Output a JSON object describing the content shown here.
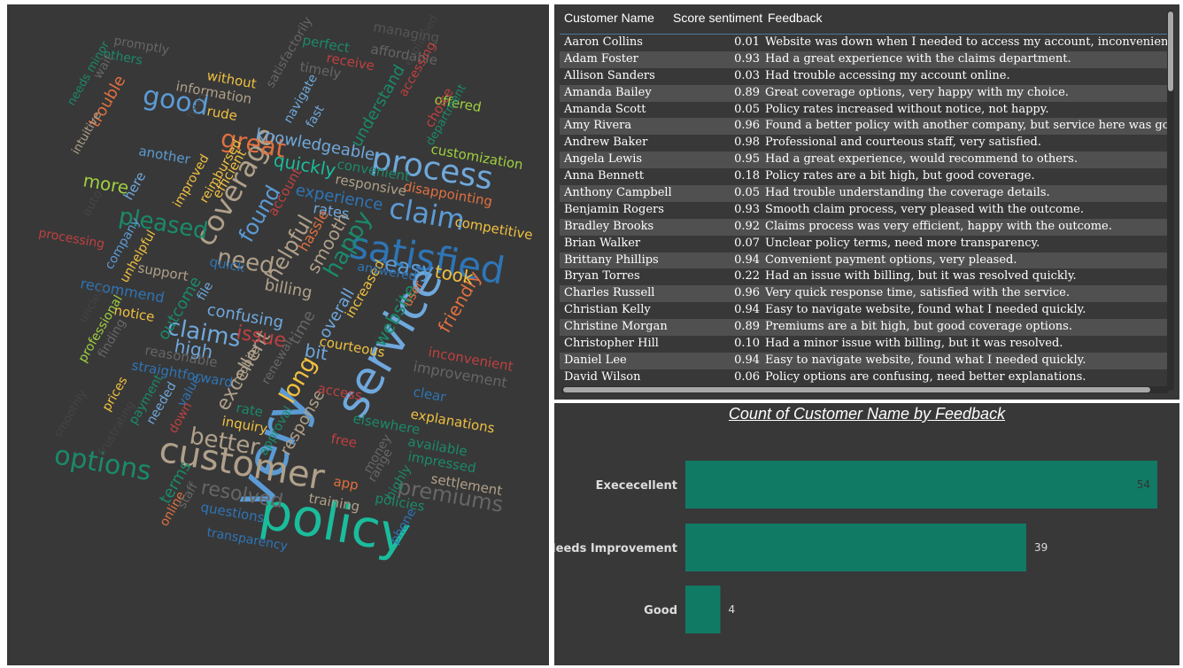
{
  "wordcloud": {
    "words": [
      {
        "text": "policy",
        "color": "#1abc9c",
        "size": 58,
        "rot": 10
      },
      {
        "text": "very",
        "color": "#5b9bd5",
        "size": 64,
        "rot": -70
      },
      {
        "text": "service",
        "color": "#6fa8dc",
        "size": 52,
        "rot": -60
      },
      {
        "text": "customer",
        "color": "#b0a08a",
        "size": 40,
        "rot": 10
      },
      {
        "text": "satisfied",
        "color": "#2e75b6",
        "size": 42,
        "rot": 10
      },
      {
        "text": "process",
        "color": "#6fa8dc",
        "size": 36,
        "rot": 10
      },
      {
        "text": "coverage",
        "color": "#b0a08a",
        "size": 32,
        "rot": -60
      },
      {
        "text": "claim",
        "color": "#5b9bd5",
        "size": 32,
        "rot": 10
      },
      {
        "text": "good",
        "color": "#5b9bd5",
        "size": 30,
        "rot": 10
      },
      {
        "text": "great",
        "color": "#e07040",
        "size": 28,
        "rot": 10
      },
      {
        "text": "options",
        "color": "#1a8a6a",
        "size": 30,
        "rot": 10
      },
      {
        "text": "better",
        "color": "#b0a08a",
        "size": 26,
        "rot": 10
      },
      {
        "text": "premiums",
        "color": "#666666",
        "size": 24,
        "rot": 10
      },
      {
        "text": "pleased",
        "color": "#1a8a6a",
        "size": 26,
        "rot": 10
      },
      {
        "text": "need",
        "color": "#b0a08a",
        "size": 26,
        "rot": 10
      },
      {
        "text": "happy",
        "color": "#1a8a6a",
        "size": 26,
        "rot": -60
      },
      {
        "text": "claims",
        "color": "#6fa8dc",
        "size": 26,
        "rot": 10
      },
      {
        "text": "long",
        "color": "#f0c040",
        "size": 26,
        "rot": -60
      },
      {
        "text": "easy",
        "color": "#5b9bd5",
        "size": 24,
        "rot": 10
      },
      {
        "text": "helpful",
        "color": "#b0a08a",
        "size": 24,
        "rot": -60
      },
      {
        "text": "found",
        "color": "#5b9bd5",
        "size": 24,
        "rot": -60
      },
      {
        "text": "resolved",
        "color": "#666666",
        "size": 22,
        "rot": 10
      },
      {
        "text": "excellent",
        "color": "#b0a08a",
        "size": 22,
        "rot": -60
      },
      {
        "text": "issue",
        "color": "#c04040",
        "size": 22,
        "rot": 10
      },
      {
        "text": "friendly",
        "color": "#e07040",
        "size": 20,
        "rot": -60
      },
      {
        "text": "website",
        "color": "#1a8a6a",
        "size": 20,
        "rot": -60
      },
      {
        "text": "quickly",
        "color": "#1abc9c",
        "size": 20,
        "rot": 10
      },
      {
        "text": "high",
        "color": "#6fa8dc",
        "size": 20,
        "rot": 10
      },
      {
        "text": "bit",
        "color": "#6fa8dc",
        "size": 20,
        "rot": 10
      },
      {
        "text": "more",
        "color": "#a0d040",
        "size": 20,
        "rot": 10
      },
      {
        "text": "took",
        "color": "#f0c040",
        "size": 20,
        "rot": 10
      },
      {
        "text": "smooth",
        "color": "#b0a08a",
        "size": 20,
        "rot": -60
      },
      {
        "text": "overall",
        "color": "#6fa8dc",
        "size": 18,
        "rot": -60
      },
      {
        "text": "confusing",
        "color": "#6fa8dc",
        "size": 18,
        "rot": 10
      },
      {
        "text": "knowledgeable",
        "color": "#6fa8dc",
        "size": 18,
        "rot": 10
      },
      {
        "text": "understand",
        "color": "#1a8a6a",
        "size": 18,
        "rot": -60
      },
      {
        "text": "outcome",
        "color": "#1a8a6a",
        "size": 18,
        "rot": -60
      },
      {
        "text": "terms",
        "color": "#1a8a6a",
        "size": 18,
        "rot": -60
      },
      {
        "text": "time",
        "color": "#666666",
        "size": 18,
        "rot": -60
      },
      {
        "text": "response",
        "color": "#b0a08a",
        "size": 18,
        "rot": -60
      },
      {
        "text": "billing",
        "color": "#b0a08a",
        "size": 18,
        "rot": 10
      },
      {
        "text": "trouble",
        "color": "#e07040",
        "size": 18,
        "rot": -60
      },
      {
        "text": "customization",
        "color": "#a0d040",
        "size": 15,
        "rot": 10
      },
      {
        "text": "competitive",
        "color": "#f0c040",
        "size": 15,
        "rot": 10
      },
      {
        "text": "disappointing",
        "color": "#e07040",
        "size": 15,
        "rot": 10
      },
      {
        "text": "explanations",
        "color": "#f0c040",
        "size": 15,
        "rot": 10
      },
      {
        "text": "settlement",
        "color": "#b0a08a",
        "size": 15,
        "rot": 10
      },
      {
        "text": "inconvenient",
        "color": "#c04040",
        "size": 15,
        "rot": 10
      },
      {
        "text": "improvement",
        "color": "#666666",
        "size": 16,
        "rot": 10
      },
      {
        "text": "elsewhere",
        "color": "#1a8a6a",
        "size": 15,
        "rot": 10
      },
      {
        "text": "impressed",
        "color": "#1a8a6a",
        "size": 15,
        "rot": 10
      },
      {
        "text": "available",
        "color": "#1a8a6a",
        "size": 15,
        "rot": 10
      },
      {
        "text": "policies",
        "color": "#1a8a6a",
        "size": 15,
        "rot": 10
      },
      {
        "text": "training",
        "color": "#b0a08a",
        "size": 15,
        "rot": 10
      },
      {
        "text": "app",
        "color": "#e07040",
        "size": 15,
        "rot": 10
      },
      {
        "text": "questions",
        "color": "#2e75b6",
        "size": 15,
        "rot": 10
      },
      {
        "text": "transparency",
        "color": "#2e75b6",
        "size": 14,
        "rot": 10
      },
      {
        "text": "inquiry",
        "color": "#f0c040",
        "size": 15,
        "rot": 10
      },
      {
        "text": "rate",
        "color": "#1a8a6a",
        "size": 15,
        "rot": 10
      },
      {
        "text": "free",
        "color": "#c04040",
        "size": 15,
        "rot": 10
      },
      {
        "text": "access",
        "color": "#c04040",
        "size": 15,
        "rot": 10
      },
      {
        "text": "clear",
        "color": "#2e75b6",
        "size": 15,
        "rot": 10
      },
      {
        "text": "courteous",
        "color": "#f0c040",
        "size": 15,
        "rot": 10
      },
      {
        "text": "increased",
        "color": "#f0c040",
        "size": 15,
        "rot": -60
      },
      {
        "text": "user",
        "color": "#e07040",
        "size": 14,
        "rot": -60
      },
      {
        "text": "answered",
        "color": "#2e75b6",
        "size": 14,
        "rot": 10
      },
      {
        "text": "rates",
        "color": "#6fa8dc",
        "size": 16,
        "rot": 10
      },
      {
        "text": "hassle",
        "color": "#e07040",
        "size": 16,
        "rot": -60
      },
      {
        "text": "responsive",
        "color": "#b0a08a",
        "size": 15,
        "rot": 10
      },
      {
        "text": "convenient",
        "color": "#1a8a6a",
        "size": 15,
        "rot": 10
      },
      {
        "text": "experience",
        "color": "#2e75b6",
        "size": 18,
        "rot": 10
      },
      {
        "text": "account",
        "color": "#c04040",
        "size": 15,
        "rot": -60
      },
      {
        "text": "efficient",
        "color": "#f0c040",
        "size": 15,
        "rot": -60
      },
      {
        "text": "reimbursed",
        "color": "#f0c040",
        "size": 14,
        "rot": -60
      },
      {
        "text": "improved",
        "color": "#f0c040",
        "size": 14,
        "rot": -60
      },
      {
        "text": "another",
        "color": "#5b9bd5",
        "size": 15,
        "rot": 10
      },
      {
        "text": "here",
        "color": "#6fa8dc",
        "size": 15,
        "rot": -60
      },
      {
        "text": "company",
        "color": "#5b9bd5",
        "size": 14,
        "rot": -60
      },
      {
        "text": "unhelpful",
        "color": "#f0c040",
        "size": 14,
        "rot": -60
      },
      {
        "text": "support",
        "color": "#b0a08a",
        "size": 15,
        "rot": 10
      },
      {
        "text": "quick",
        "color": "#2e75b6",
        "size": 15,
        "rot": 10
      },
      {
        "text": "recommend",
        "color": "#2e75b6",
        "size": 16,
        "rot": 10
      },
      {
        "text": "processing",
        "color": "#c04040",
        "size": 14,
        "rot": 10
      },
      {
        "text": "notice",
        "color": "#f0c040",
        "size": 15,
        "rot": 10
      },
      {
        "text": "professional",
        "color": "#a0d040",
        "size": 14,
        "rot": -60
      },
      {
        "text": "finding",
        "color": "#666666",
        "size": 14,
        "rot": -60
      },
      {
        "text": "reasonable",
        "color": "#666666",
        "size": 15,
        "rot": 10
      },
      {
        "text": "straightforward",
        "color": "#2e75b6",
        "size": 15,
        "rot": 10
      },
      {
        "text": "file",
        "color": "#6fa8dc",
        "size": 14,
        "rot": -60
      },
      {
        "text": "mobile",
        "color": "#b0a08a",
        "size": 14,
        "rot": -60
      },
      {
        "text": "renewal",
        "color": "#666666",
        "size": 14,
        "rot": -60
      },
      {
        "text": "prices",
        "color": "#f0c040",
        "size": 14,
        "rot": -60
      },
      {
        "text": "payment",
        "color": "#1a8a6a",
        "size": 14,
        "rot": -60
      },
      {
        "text": "needed",
        "color": "#6fa8dc",
        "size": 14,
        "rot": -60
      },
      {
        "text": "value",
        "color": "#2e75b6",
        "size": 14,
        "rot": -60
      },
      {
        "text": "down",
        "color": "#c04040",
        "size": 14,
        "rot": -60
      },
      {
        "text": "approval",
        "color": "#1a8a6a",
        "size": 14,
        "rot": -60
      },
      {
        "text": "money",
        "color": "#666666",
        "size": 14,
        "rot": -60
      },
      {
        "text": "range",
        "color": "#666666",
        "size": 14,
        "rot": -60
      },
      {
        "text": "highly",
        "color": "#1a8a6a",
        "size": 14,
        "rot": -60
      },
      {
        "text": "phone",
        "color": "#2e75b6",
        "size": 14,
        "rot": -60
      },
      {
        "text": "online",
        "color": "#e07040",
        "size": 14,
        "rot": -60
      },
      {
        "text": "staff",
        "color": "#666666",
        "size": 14,
        "rot": -60
      },
      {
        "text": "rude",
        "color": "#f0c040",
        "size": 15,
        "rot": 10
      },
      {
        "text": "without",
        "color": "#f0c040",
        "size": 15,
        "rot": 10
      },
      {
        "text": "information",
        "color": "#b0a08a",
        "size": 15,
        "rot": 10
      },
      {
        "text": "satisfactorily",
        "color": "#666666",
        "size": 14,
        "rot": -60
      },
      {
        "text": "navigate",
        "color": "#6fa8dc",
        "size": 14,
        "rot": -60
      },
      {
        "text": "fast",
        "color": "#6fa8dc",
        "size": 14,
        "rot": -60
      },
      {
        "text": "timely",
        "color": "#666666",
        "size": 15,
        "rot": 10
      },
      {
        "text": "receive",
        "color": "#c04040",
        "size": 15,
        "rot": 10
      },
      {
        "text": "perfect",
        "color": "#1a8a6a",
        "size": 15,
        "rot": 10
      },
      {
        "text": "affordable",
        "color": "#666666",
        "size": 15,
        "rot": 10
      },
      {
        "text": "managing",
        "color": "#555555",
        "size": 15,
        "rot": 10
      },
      {
        "text": "accessing",
        "color": "#c04040",
        "size": 14,
        "rot": -60
      },
      {
        "text": "offered",
        "color": "#a0d040",
        "size": 15,
        "rot": 10
      },
      {
        "text": "choice",
        "color": "#c04040",
        "size": 15,
        "rot": -60
      },
      {
        "text": "department",
        "color": "#1a8a6a",
        "size": 13,
        "rot": -60
      },
      {
        "text": "promptly",
        "color": "#666666",
        "size": 14,
        "rot": 10
      },
      {
        "text": "others",
        "color": "#1a8a6a",
        "size": 14,
        "rot": 10
      },
      {
        "text": "wait",
        "color": "#666666",
        "size": 14,
        "rot": -60
      },
      {
        "text": "needs minor",
        "color": "#1a8a6a",
        "size": 13,
        "rot": -60
      },
      {
        "text": "intuitive",
        "color": "#b0a08a",
        "size": 13,
        "rot": -60
      },
      {
        "text": "auto",
        "color": "#444444",
        "size": 14,
        "rot": -60
      },
      {
        "text": "unclear",
        "color": "#444444",
        "size": 13,
        "rot": -60
      },
      {
        "text": "smoothly",
        "color": "#444444",
        "size": 13,
        "rot": -60
      },
      {
        "text": "fixed",
        "color": "#444444",
        "size": 13,
        "rot": -60
      },
      {
        "text": "frustrating",
        "color": "#444444",
        "size": 13,
        "rot": -60
      },
      {
        "text": "explained",
        "color": "#444444",
        "size": 13,
        "rot": -60
      }
    ]
  },
  "table": {
    "headers": {
      "name": "Customer Name",
      "score": "Score sentiment",
      "feedback": "Feedback"
    },
    "rows": [
      {
        "name": "Aaron Collins",
        "score": "0.01",
        "feedback": "Website was down when I needed to access my account, inconvenient."
      },
      {
        "name": "Adam Foster",
        "score": "0.93",
        "feedback": "Had a great experience with the claims department."
      },
      {
        "name": "Allison Sanders",
        "score": "0.03",
        "feedback": "Had trouble accessing my account online."
      },
      {
        "name": "Amanda Bailey",
        "score": "0.89",
        "feedback": "Great coverage options, very happy with my choice."
      },
      {
        "name": "Amanda Scott",
        "score": "0.05",
        "feedback": "Policy rates increased without notice, not happy."
      },
      {
        "name": "Amy Rivera",
        "score": "0.96",
        "feedback": "Found a better policy with another company, but service here was good."
      },
      {
        "name": "Andrew Baker",
        "score": "0.98",
        "feedback": "Professional and courteous staff, very satisfied."
      },
      {
        "name": "Angela Lewis",
        "score": "0.95",
        "feedback": "Had a great experience, would recommend to others."
      },
      {
        "name": "Anna Bennett",
        "score": "0.18",
        "feedback": "Policy rates are a bit high, but good coverage."
      },
      {
        "name": "Anthony Campbell",
        "score": "0.05",
        "feedback": "Had trouble understanding the coverage details."
      },
      {
        "name": "Benjamin Rogers",
        "score": "0.93",
        "feedback": "Smooth claim process, very pleased with the outcome."
      },
      {
        "name": "Bradley Brooks",
        "score": "0.92",
        "feedback": "Claims process was very efficient, happy with the outcome."
      },
      {
        "name": "Brian Walker",
        "score": "0.07",
        "feedback": "Unclear policy terms, need more transparency."
      },
      {
        "name": "Brittany Phillips",
        "score": "0.94",
        "feedback": "Convenient payment options, very pleased."
      },
      {
        "name": "Bryan Torres",
        "score": "0.22",
        "feedback": "Had an issue with billing, but it was resolved quickly."
      },
      {
        "name": "Charles Russell",
        "score": "0.96",
        "feedback": "Very quick response time, satisfied with the service."
      },
      {
        "name": "Christian Kelly",
        "score": "0.94",
        "feedback": "Easy to navigate website, found what I needed quickly."
      },
      {
        "name": "Christine Morgan",
        "score": "0.89",
        "feedback": "Premiums are a bit high, but good coverage options."
      },
      {
        "name": "Christopher Hill",
        "score": "0.10",
        "feedback": "Had a minor issue with billing, but it was resolved."
      },
      {
        "name": "Daniel Lee",
        "score": "0.94",
        "feedback": "Easy to navigate website, found what I needed quickly."
      },
      {
        "name": "David Wilson",
        "score": "0.06",
        "feedback": "Policy options are confusing, need better explanations."
      }
    ]
  },
  "chart": {
    "title": "Count of Customer Name by Feedback",
    "bar_color": "#117a65",
    "label_color": "#dddddd"
  },
  "chart_data": {
    "type": "bar",
    "orientation": "horizontal",
    "title": "Count of Customer Name by Feedback",
    "categories": [
      "Exececellent",
      "Needs Improvement",
      "Good"
    ],
    "values": [
      54,
      39,
      4
    ],
    "xlim": [
      0,
      54
    ]
  }
}
